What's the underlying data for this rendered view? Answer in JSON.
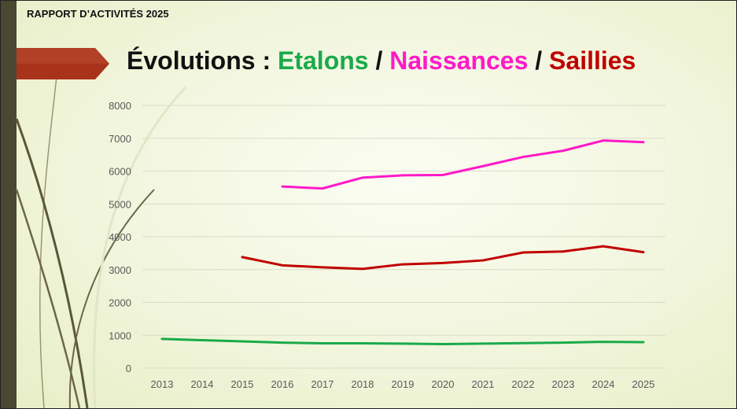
{
  "header": {
    "report_label": "RAPPORT D’ACTIVITÉS 2025"
  },
  "title": {
    "prefix": "Évolutions : ",
    "part1": "Etalons",
    "sep1": " / ",
    "part2": "Naissances",
    "sep2": " / ",
    "part3": "Saillies"
  },
  "chart_data": {
    "type": "line",
    "categories": [
      "2013",
      "2014",
      "2015",
      "2016",
      "2017",
      "2018",
      "2019",
      "2020",
      "2021",
      "2022",
      "2023",
      "2024",
      "2025"
    ],
    "ylim": [
      0,
      8000
    ],
    "yticks": [
      0,
      1000,
      2000,
      3000,
      4000,
      5000,
      6000,
      7000,
      8000
    ],
    "grid": true,
    "series": [
      {
        "key": "etalons",
        "color": "#1aaa4a",
        "values": [
          890,
          850,
          815,
          775,
          755,
          755,
          745,
          730,
          745,
          760,
          775,
          800,
          790
        ]
      },
      {
        "key": "naissances",
        "color": "#ff19c8",
        "values": [
          null,
          null,
          null,
          5530,
          5470,
          5800,
          5870,
          5880,
          6150,
          6430,
          6620,
          6930,
          6880
        ]
      },
      {
        "key": "saillies",
        "color": "#c00000",
        "values": [
          null,
          null,
          3380,
          3130,
          3070,
          3020,
          3160,
          3200,
          3280,
          3520,
          3550,
          3710,
          3530
        ]
      }
    ]
  }
}
